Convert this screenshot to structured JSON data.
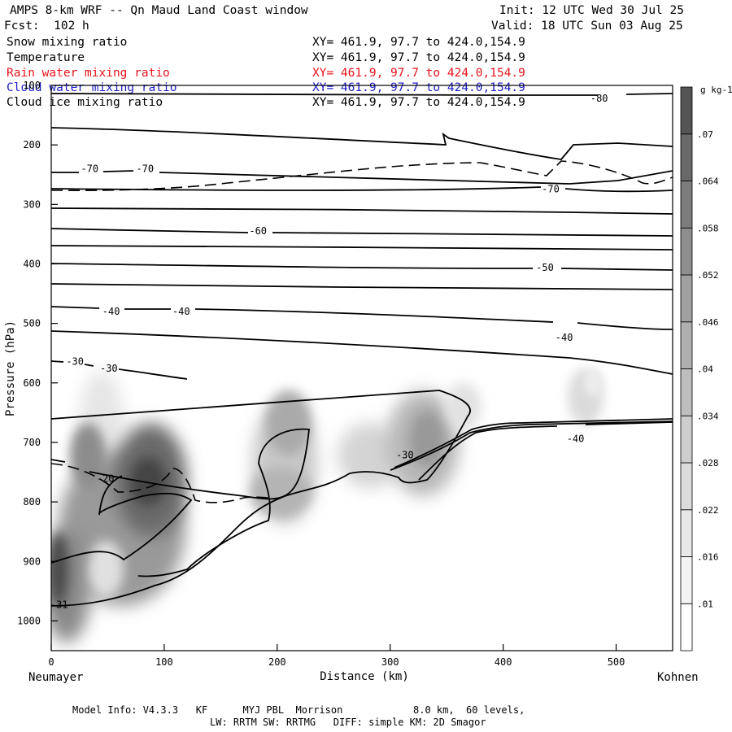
{
  "header": {
    "title": "AMPS 8-km WRF -- Qn Maud Land Coast window",
    "forecast": "Fcst:  102 h",
    "init": "Init: 12 UTC Wed 30 Jul 25",
    "valid": "Valid: 18 UTC Sun 03 Aug 25"
  },
  "fields": [
    {
      "name": "Snow mixing ratio",
      "xy": "XY= 461.9, 97.7 to 424.0,154.9",
      "color": "#000000"
    },
    {
      "name": "Temperature",
      "xy": "XY= 461.9, 97.7 to 424.0,154.9",
      "color": "#000000"
    },
    {
      "name": "Rain water mixing ratio",
      "xy": "XY= 461.9, 97.7 to 424.0,154.9",
      "color": "#e8141c"
    },
    {
      "name": "Cloud water mixing ratio",
      "xy": "XY= 461.9, 97.7 to 424.0,154.9",
      "color": "#1e1ec8"
    },
    {
      "name": "Cloud ice mixing ratio",
      "xy": "XY= 461.9, 97.7 to 424.0,154.9",
      "color": "#000000"
    }
  ],
  "chart_data": {
    "type": "heatmap",
    "x_axis": {
      "label": "Distance (km)",
      "range": [
        0,
        550
      ],
      "ticks": [
        0,
        100,
        200,
        300,
        400,
        500
      ],
      "left_end_label": "Neumayer",
      "right_end_label": "Kohnen"
    },
    "y_axis": {
      "label": "Pressure (hPa)",
      "range": [
        100,
        1050
      ],
      "ticks": [
        100,
        200,
        300,
        400,
        500,
        600,
        700,
        800,
        900,
        1000
      ]
    },
    "colorbar": {
      "unit": "g kg-1",
      "levels": [
        ".01",
        ".016",
        ".022",
        ".028",
        ".034",
        ".04",
        ".046",
        ".052",
        ".058",
        ".064",
        ".07"
      ],
      "colors": [
        "#ffffff",
        "#f4f4f4",
        "#e8e8e8",
        "#dcdcdc",
        "#cdcdcd",
        "#bebebe",
        "#afafaf",
        "#a0a0a0",
        "#8e8e8e",
        "#7c7c7c",
        "#696969",
        "#555555"
      ]
    },
    "temperature_labels": [
      {
        "text": "-80",
        "x": 485,
        "p": 122
      },
      {
        "text": "-70",
        "x": 34,
        "p": 240
      },
      {
        "text": "-70",
        "x": 83,
        "p": 240
      },
      {
        "text": "-70",
        "x": 442,
        "p": 274
      },
      {
        "text": "-60",
        "x": 183,
        "p": 345
      },
      {
        "text": "-50",
        "x": 437,
        "p": 406
      },
      {
        "text": "-40",
        "x": 53,
        "p": 480
      },
      {
        "text": "-40",
        "x": 115,
        "p": 480
      },
      {
        "text": "-40",
        "x": 454,
        "p": 524
      },
      {
        "text": "-40",
        "x": 464,
        "p": 694
      },
      {
        "text": "-30",
        "x": 21,
        "p": 564
      },
      {
        "text": "-30",
        "x": 51,
        "p": 576
      },
      {
        "text": "-30",
        "x": 313,
        "p": 721
      },
      {
        "text": "-20",
        "x": 48,
        "p": 761
      },
      {
        "text": "-31",
        "x": 7,
        "p": 973
      }
    ]
  },
  "footer": {
    "model_info": "Model Info: V4.3.3   KF      MYJ PBL  Morrison            8.0 km,  60 levels,",
    "physics": "LW: RRTM SW: RRTMG   DIFF: simple KM: 2D Smagor"
  }
}
